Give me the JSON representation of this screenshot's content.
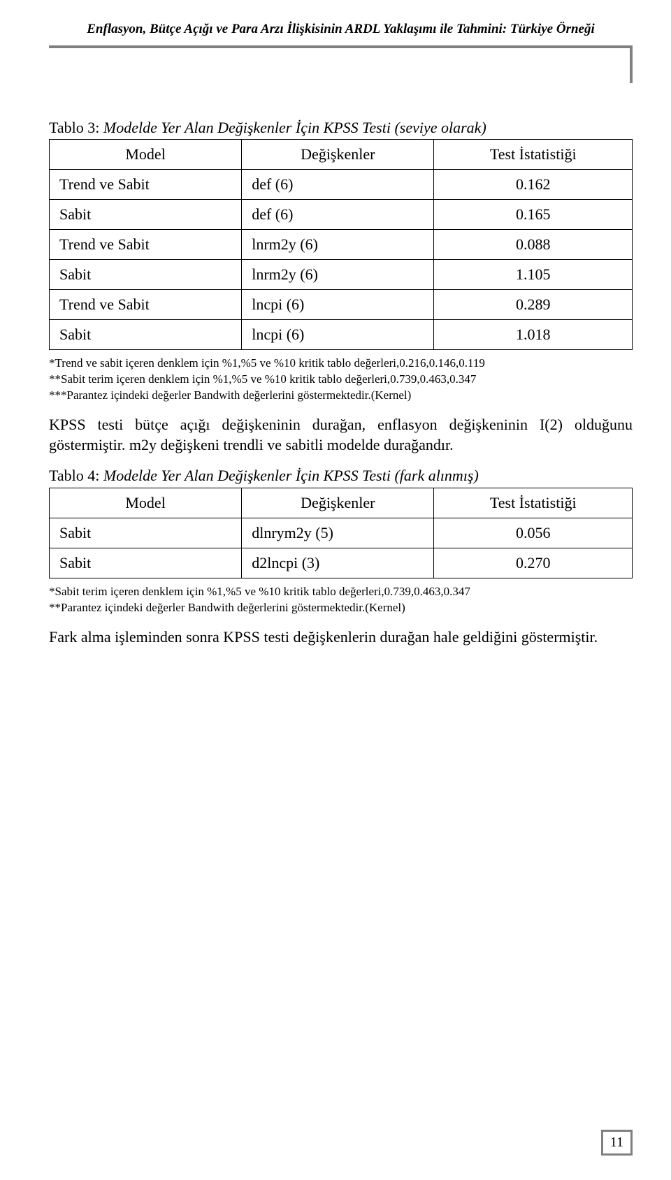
{
  "header": {
    "title": "Enflasyon, Bütçe Açığı ve Para Arzı İlişkisinin ARDL Yaklaşımı ile Tahmini: Türkiye Örneği"
  },
  "table3": {
    "caption_prefix": "Tablo 3: ",
    "caption_italic": "Modelde Yer Alan Değişkenler İçin KPSS Testi (seviye olarak)",
    "columns": [
      "Model",
      "Değişkenler",
      "Test İstatistiği"
    ],
    "rows": [
      {
        "model": "Trend ve Sabit",
        "var": "def (6)",
        "stat": "0.162",
        "tall": true
      },
      {
        "model": "Sabit",
        "var": "def (6)",
        "stat": "0.165",
        "tall": false
      },
      {
        "model": "Trend ve Sabit",
        "var": "lnrm2y (6)",
        "stat": "0.088",
        "tall": true
      },
      {
        "model": "Sabit",
        "var": "lnrm2y (6)",
        "stat": "1.105",
        "tall": false
      },
      {
        "model": "Trend ve Sabit",
        "var": "lncpi (6)",
        "stat": "0.289",
        "tall": true
      },
      {
        "model": "Sabit",
        "var": "lncpi (6)",
        "stat": "1.018",
        "tall": false
      }
    ],
    "footnotes": [
      "*Trend ve sabit içeren denklem için %1,%5 ve %10 kritik tablo  değerleri,0.216,0.146,0.119",
      "**Sabit terim içeren denklem için %1,%5 ve %10 kritik tablo değerleri,0.739,0.463,0.347",
      "***Parantez içindeki değerler Bandwith değerlerini göstermektedir.(Kernel)"
    ]
  },
  "paragraph1": "KPSS testi bütçe açığı değişkeninin durağan, enflasyon değişkeninin I(2) olduğunu göstermiştir. m2y değişkeni trendli ve sabitli modelde durağandır.",
  "table4": {
    "caption_prefix": "Tablo 4: ",
    "caption_italic": "Modelde Yer Alan Değişkenler İçin KPSS Testi (fark alınmış)",
    "columns": [
      "Model",
      "Değişkenler",
      "Test İstatistiği"
    ],
    "rows": [
      {
        "model": "Sabit",
        "var": "dlnrym2y (5)",
        "stat": "0.056",
        "tall": true
      },
      {
        "model": "Sabit",
        "var": "d2lncpi (3)",
        "stat": "0.270",
        "tall": false
      }
    ],
    "footnotes": [
      "*Sabit terim içeren denklem için %1,%5 ve %10 kritik tablo değerleri,0.739,0.463,0.347",
      "**Parantez içindeki değerler Bandwith değerlerini göstermektedir.(Kernel)"
    ]
  },
  "paragraph2": "Fark alma işleminden sonra KPSS testi değişkenlerin durağan hale geldiğini göstermiştir.",
  "pageNumber": "11"
}
